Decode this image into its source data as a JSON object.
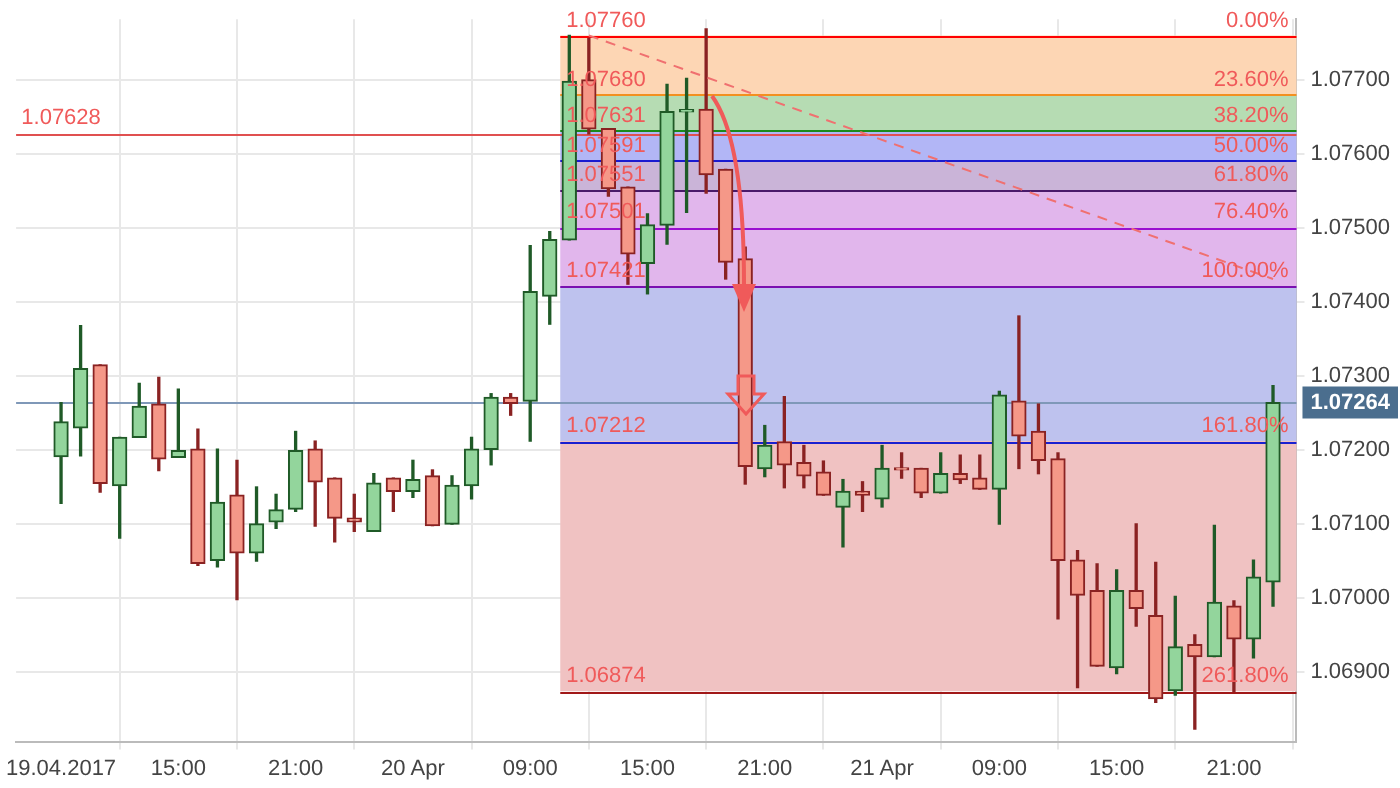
{
  "chart_data": {
    "type": "candlestick",
    "categories": [
      "19.04.2017",
      null,
      null,
      null,
      null,
      null,
      "15:00",
      null,
      null,
      null,
      null,
      null,
      "21:00",
      null,
      null,
      null,
      null,
      null,
      "20 Apr",
      null,
      null,
      null,
      null,
      null,
      "09:00",
      null,
      null,
      null,
      null,
      null,
      "15:00",
      null,
      null,
      null,
      null,
      null,
      "21:00",
      null,
      null,
      null,
      null,
      null,
      "21 Apr",
      null,
      null,
      null,
      null,
      null,
      "09:00",
      null,
      null,
      null,
      null,
      null,
      "15:00",
      null,
      null,
      null,
      null,
      null,
      "21:00",
      null,
      null
    ],
    "ohlc": [
      [
        1.07191,
        1.07264,
        1.07128,
        1.07238
      ],
      [
        1.0723,
        1.07368,
        1.07192,
        1.0731
      ],
      [
        1.07315,
        1.07315,
        1.07143,
        1.07155
      ],
      [
        1.07152,
        1.07217,
        1.07081,
        1.07217
      ],
      [
        1.07217,
        1.0729,
        1.07217,
        1.07259
      ],
      [
        1.07262,
        1.07298,
        1.07172,
        1.07188
      ],
      [
        1.0719,
        1.07282,
        1.0719,
        1.07199
      ],
      [
        1.07201,
        1.07228,
        1.07044,
        1.07047
      ],
      [
        1.07051,
        1.07201,
        1.07042,
        1.07129
      ],
      [
        1.07139,
        1.07186,
        1.06998,
        1.07061
      ],
      [
        1.07061,
        1.0715,
        1.0705,
        1.071
      ],
      [
        1.07103,
        1.0714,
        1.07094,
        1.07119
      ],
      [
        1.0712,
        1.07225,
        1.07117,
        1.07199
      ],
      [
        1.07201,
        1.07212,
        1.07097,
        1.07157
      ],
      [
        1.07162,
        1.07162,
        1.07076,
        1.07108
      ],
      [
        1.07108,
        1.0714,
        1.0709,
        1.07103
      ],
      [
        1.0709,
        1.07168,
        1.0709,
        1.07155
      ],
      [
        1.07162,
        1.07162,
        1.07117,
        1.07144
      ],
      [
        1.07144,
        1.07186,
        1.07136,
        1.0716
      ],
      [
        1.07165,
        1.07173,
        1.07098,
        1.07098
      ],
      [
        1.071,
        1.07165,
        1.071,
        1.07152
      ],
      [
        1.07152,
        1.07217,
        1.07134,
        1.07201
      ],
      [
        1.07201,
        1.07276,
        1.0718,
        1.07271
      ],
      [
        1.07271,
        1.07276,
        1.07247,
        1.07263
      ],
      [
        1.07266,
        1.07476,
        1.07212,
        1.07414
      ],
      [
        1.07408,
        1.07495,
        1.0737,
        1.07484
      ],
      [
        1.07484,
        1.0776,
        1.07484,
        1.07698
      ],
      [
        1.077,
        1.07756,
        1.07627,
        1.07634
      ],
      [
        1.07634,
        1.07634,
        1.07543,
        1.07553
      ],
      [
        1.07555,
        1.07555,
        1.07424,
        1.07465
      ],
      [
        1.07452,
        1.07519,
        1.07411,
        1.07504
      ],
      [
        1.07504,
        1.07694,
        1.07478,
        1.07657
      ],
      [
        1.07657,
        1.07702,
        1.07521,
        1.07657
      ],
      [
        1.0766,
        1.07769,
        1.07547,
        1.07572
      ],
      [
        1.07579,
        1.07579,
        1.07431,
        1.07454
      ],
      [
        1.07458,
        1.07474,
        1.07154,
        1.07178
      ],
      [
        1.07175,
        1.07233,
        1.07164,
        1.07206
      ],
      [
        1.07211,
        1.07272,
        1.07149,
        1.0718
      ],
      [
        1.07183,
        1.07206,
        1.07149,
        1.07165
      ],
      [
        1.0717,
        1.07185,
        1.07139,
        1.07139
      ],
      [
        1.07123,
        1.0716,
        1.07069,
        1.07144
      ],
      [
        1.07144,
        1.07157,
        1.07117,
        1.07139
      ],
      [
        1.07134,
        1.07206,
        1.07123,
        1.07175
      ],
      [
        1.07175,
        1.07196,
        1.07162,
        1.07173
      ],
      [
        1.07175,
        1.07175,
        1.07136,
        1.07142
      ],
      [
        1.07142,
        1.07196,
        1.07142,
        1.07168
      ],
      [
        1.07168,
        1.07193,
        1.07155,
        1.0716
      ],
      [
        1.07162,
        1.07193,
        1.07147,
        1.07147
      ],
      [
        1.07147,
        1.07279,
        1.071,
        1.07274
      ],
      [
        1.07266,
        1.07381,
        1.07175,
        1.07219
      ],
      [
        1.07225,
        1.07262,
        1.07168,
        1.07186
      ],
      [
        1.07188,
        1.07196,
        1.06972,
        1.07051
      ],
      [
        1.07051,
        1.07064,
        1.06879,
        1.07004
      ],
      [
        1.0701,
        1.07046,
        1.06908,
        1.06908
      ],
      [
        1.06906,
        1.07038,
        1.06898,
        1.0701
      ],
      [
        1.0701,
        1.071,
        1.06962,
        1.06986
      ],
      [
        1.06976,
        1.07048,
        1.06859,
        1.06864
      ],
      [
        1.06875,
        1.07002,
        1.06869,
        1.06934
      ],
      [
        1.06937,
        1.0695,
        1.06823,
        1.06921
      ],
      [
        1.06921,
        1.07098,
        1.06921,
        1.06994
      ],
      [
        1.06989,
        1.06996,
        1.06874,
        1.06945
      ],
      [
        1.06945,
        1.07051,
        1.06919,
        1.07028
      ],
      [
        1.07022,
        1.07287,
        1.06989,
        1.07264
      ]
    ],
    "series": [
      {
        "type": "line",
        "color": "#f07070",
        "line_style": "dashed",
        "values": [
          null,
          null,
          null,
          null,
          null,
          null,
          null,
          null,
          null,
          null,
          null,
          null,
          null,
          null,
          null,
          null,
          null,
          null,
          null,
          null,
          null,
          null,
          null,
          null,
          null,
          null,
          null,
          1.0776,
          null,
          null,
          null,
          null,
          null,
          null,
          null,
          null,
          null,
          null,
          null,
          null,
          null,
          null,
          null,
          null,
          null,
          null,
          null,
          null,
          null,
          null,
          null,
          null,
          null,
          null,
          null,
          null,
          null,
          null,
          null,
          null,
          null,
          null,
          1.07431
        ]
      }
    ],
    "ylim": [
      1.06806,
      1.07782
    ],
    "yticks": [
      {
        "value": 1.069,
        "label": "1.06900"
      },
      {
        "value": 1.07,
        "label": "1.07000"
      },
      {
        "value": 1.071,
        "label": "1.07100"
      },
      {
        "value": 1.072,
        "label": "1.07200"
      },
      {
        "value": 1.07264,
        "label": "1.07264"
      },
      {
        "value": 1.073,
        "label": "1.07300"
      },
      {
        "value": 1.074,
        "label": "1.07400"
      },
      {
        "value": 1.075,
        "label": "1.07500"
      },
      {
        "value": 1.076,
        "label": "1.07600"
      },
      {
        "value": 1.077,
        "label": "1.07700"
      }
    ],
    "bands": [
      {
        "axis": "y",
        "from": 1.0768,
        "to": 1.0776,
        "color": "#fdd6b4"
      },
      {
        "axis": "y",
        "from": 1.07631,
        "to": 1.0768,
        "color": "#b6dcb3"
      },
      {
        "axis": "y",
        "from": 1.07591,
        "to": 1.07631,
        "color": "#b2b6f6"
      },
      {
        "axis": "y",
        "from": 1.07551,
        "to": 1.07591,
        "color": "#cab4d8"
      },
      {
        "axis": "y",
        "from": 1.07421,
        "to": 1.07551,
        "color": "#e1b6ec"
      },
      {
        "axis": "y",
        "from": 1.07212,
        "to": 1.07421,
        "color": "#bec2ee"
      },
      {
        "axis": "y",
        "from": 1.06874,
        "to": 1.07212,
        "color": "#f0c2c2"
      }
    ],
    "ref_lines": [
      {
        "axis": "y",
        "value": 1.0776,
        "color": "#ff0000"
      },
      {
        "axis": "y",
        "value": 1.0768,
        "color": "#f39020"
      },
      {
        "axis": "y",
        "value": 1.07631,
        "color": "#1a8a1a"
      },
      {
        "axis": "y",
        "value": 1.07591,
        "color": "#1a1ad0"
      },
      {
        "axis": "y",
        "value": 1.07551,
        "color": "#4a1a6a"
      },
      {
        "axis": "y",
        "value": 1.07501,
        "color": "#9a10d0"
      },
      {
        "axis": "y",
        "value": 1.07421,
        "color": "#7a10b0"
      },
      {
        "axis": "y",
        "value": 1.07212,
        "color": "#1a20d0"
      },
      {
        "axis": "y",
        "value": 1.06874,
        "color": "#a01818"
      },
      {
        "axis": "y",
        "value": 1.07628,
        "color": "#e05050"
      },
      {
        "axis": "y",
        "value": 1.07264,
        "color": "#7f98b8"
      }
    ],
    "annotations": [
      {
        "text": "1.07760",
        "y": 1.0776
      },
      {
        "text": "1.07680",
        "y": 1.0768
      },
      {
        "text": "1.07631",
        "y": 1.07631
      },
      {
        "text": "1.07591",
        "y": 1.07591
      },
      {
        "text": "1.07551",
        "y": 1.07551
      },
      {
        "text": "1.07501",
        "y": 1.07501
      },
      {
        "text": "1.07421",
        "y": 1.07421
      },
      {
        "text": "1.07212",
        "y": 1.07212
      },
      {
        "text": "1.06874",
        "y": 1.06874
      },
      {
        "text": "0.00%",
        "y": 1.0776
      },
      {
        "text": "23.60%",
        "y": 1.0768
      },
      {
        "text": "38.20%",
        "y": 1.07631
      },
      {
        "text": "50.00%",
        "y": 1.07591
      },
      {
        "text": "61.80%",
        "y": 1.07551
      },
      {
        "text": "76.40%",
        "y": 1.07501
      },
      {
        "text": "100.00%",
        "y": 1.07421
      },
      {
        "text": "161.80%",
        "y": 1.07212
      },
      {
        "text": "261.80%",
        "y": 1.06874
      },
      {
        "text": "1.07628",
        "x": "19.04.2017",
        "y": 1.07628
      }
    ],
    "grid": true,
    "legend": false
  }
}
